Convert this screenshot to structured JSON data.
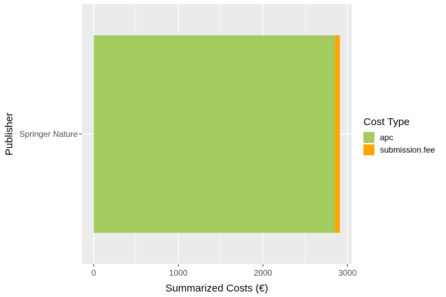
{
  "chart_data": {
    "type": "bar",
    "orientation": "horizontal",
    "stacked": true,
    "categories": [
      "Springer Nature"
    ],
    "series": [
      {
        "name": "apc",
        "values": [
          2850
        ],
        "color": "#a3cc5f"
      },
      {
        "name": "submission.fee",
        "values": [
          60
        ],
        "color": "#ffa500"
      }
    ],
    "title": "",
    "xlabel": "Summarized Costs (€)",
    "ylabel": "Publisher",
    "xlim": [
      -140,
      3050
    ],
    "xticks": [
      0,
      1000,
      2000,
      3000
    ],
    "xticks_minor": [
      500,
      1500,
      2500
    ],
    "grid": true,
    "panel_background": "#ebebeb",
    "legend": {
      "title": "Cost Type",
      "position": "right",
      "items": [
        "apc",
        "submission.fee"
      ]
    }
  }
}
